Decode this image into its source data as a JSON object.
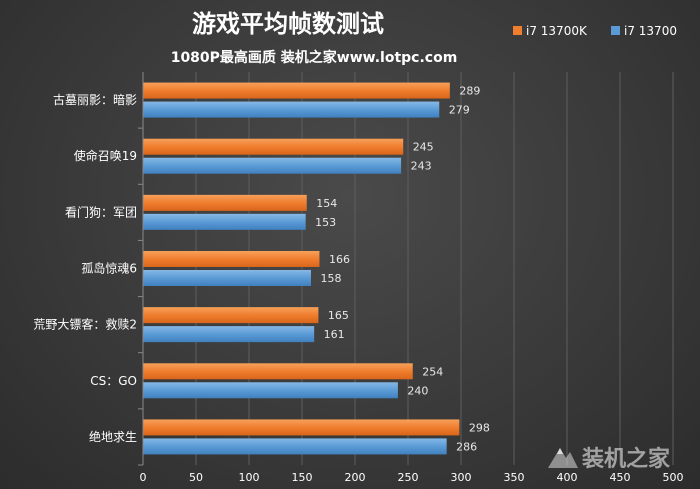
{
  "chart_data": {
    "type": "bar",
    "orientation": "horizontal",
    "title": "游戏平均帧数测试",
    "subtitle": "1080P最高画质  装机之家www.lotpc.com",
    "categories": [
      "古墓丽影：暗影",
      "使命召唤19",
      "看门狗：军团",
      "孤岛惊魂6",
      "荒野大镖客：救赎2",
      "CS：GO",
      "绝地求生"
    ],
    "series": [
      {
        "name": "i7 13700K",
        "color": "#f07e2e",
        "values": [
          289,
          245,
          154,
          166,
          165,
          254,
          298
        ]
      },
      {
        "name": "i7 13700",
        "color": "#5b9bd5",
        "values": [
          279,
          243,
          153,
          158,
          161,
          240,
          286
        ]
      }
    ],
    "xlim": [
      0,
      500
    ],
    "xticks": [
      0,
      50,
      100,
      150,
      200,
      250,
      300,
      350,
      400,
      450,
      500
    ],
    "grid": true,
    "legend_position": "top-right",
    "data_labels": true
  },
  "watermark": {
    "text": "装机之家",
    "icon": "mountain-logo-icon"
  }
}
